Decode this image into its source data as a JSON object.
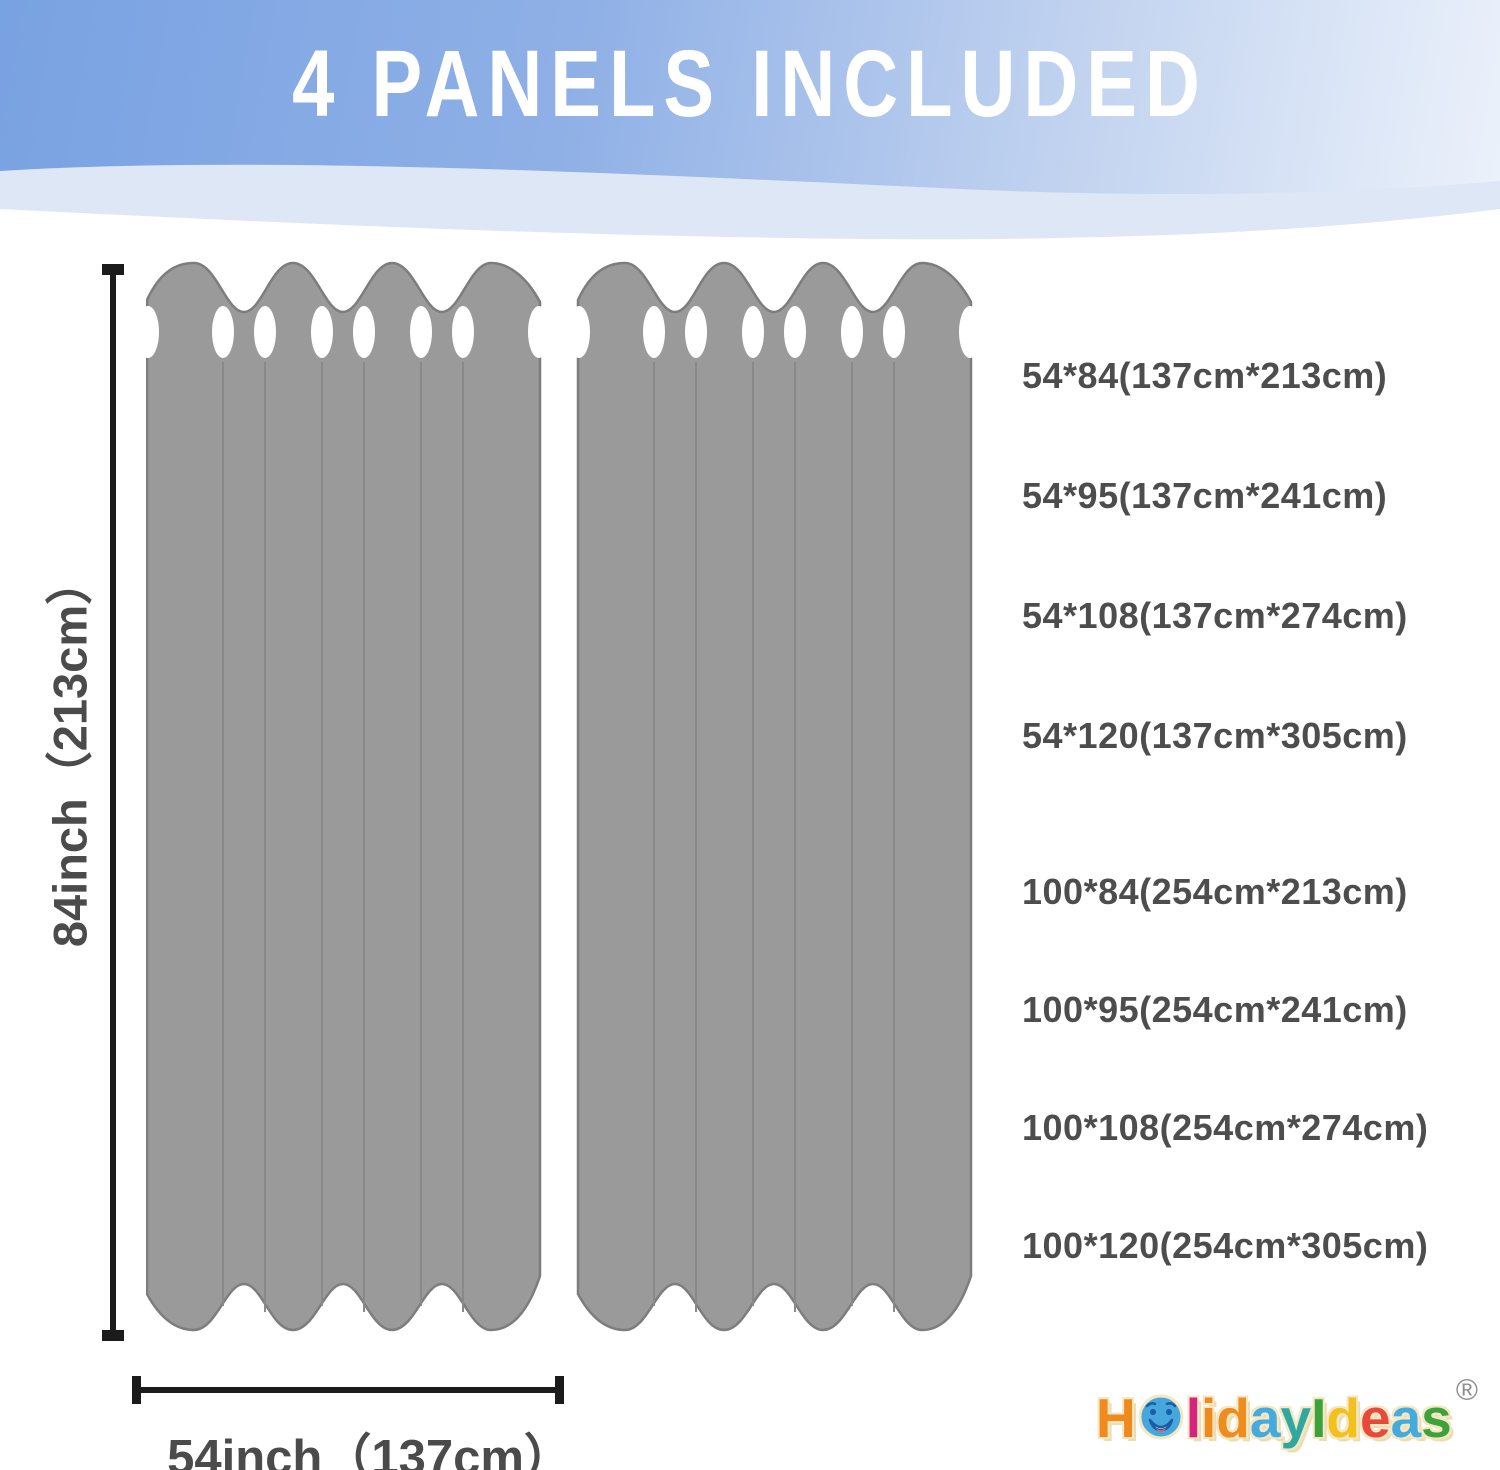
{
  "header": {
    "title": "4 PANELS INCLUDED",
    "bg_color_left": "#79a2e2",
    "bg_color_right": "#ecf2fb",
    "title_color": "#ffffff"
  },
  "panels": {
    "count_shown": 2,
    "fill": "#9a9a9a",
    "outline": "#7d7d7d",
    "fold_line_color": "#898989",
    "grommet_color": "#ffffff"
  },
  "dimensions": {
    "height_label": "84inch（213cm）",
    "width_label": "54inch（137cm）",
    "line_color": "#1b1b1b",
    "label_color": "#4b4b4b"
  },
  "sizes": {
    "group1": [
      "54*84(137cm*213cm)",
      "54*95(137cm*241cm)",
      "54*108(137cm*274cm)",
      "54*120(137cm*305cm)"
    ],
    "group2": [
      "100*84(254cm*213cm)",
      "100*95(254cm*241cm)",
      "100*108(254cm*274cm)",
      "100*120(254cm*305cm)"
    ]
  },
  "logo": {
    "text": "HolidayIdeas",
    "registered_mark": "®",
    "outline_color": "#f4e7c3",
    "smiley": {
      "face": "#46a7dc",
      "features": "#1c5ca6",
      "mouth": "#ffffff",
      "tongue": "#e8604c"
    },
    "letters": [
      {
        "char": "H",
        "color": "#f08a1d"
      },
      {
        "type": "smiley",
        "char": "o",
        "color": "#46a7dc"
      },
      {
        "char": "l",
        "color": "#d6247e"
      },
      {
        "char": "i",
        "color": "#f08a1d"
      },
      {
        "char": "d",
        "color": "#ef8c1e"
      },
      {
        "char": "a",
        "color": "#45aade"
      },
      {
        "char": "y",
        "color": "#2fa8a0"
      },
      {
        "char": "I",
        "color": "#3ca23a"
      },
      {
        "char": "d",
        "color": "#f3c11d"
      },
      {
        "char": "e",
        "color": "#e84a3a"
      },
      {
        "char": "a",
        "color": "#45aade"
      },
      {
        "char": "s",
        "color": "#3ca23a"
      }
    ]
  }
}
